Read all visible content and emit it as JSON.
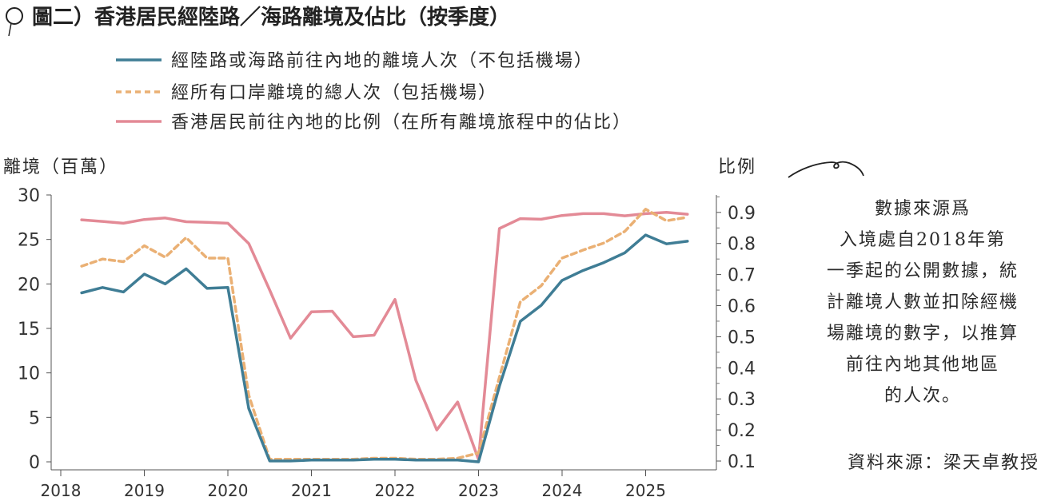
{
  "title": "圖二）香港居民經陸路／海路離境及佔比（按季度）",
  "legend": [
    {
      "label": "經陸路或海路前往內地的離境人次（不包括機場）",
      "color": "#3f7d95",
      "style": "solid"
    },
    {
      "label": "經所有口岸離境的總人次（包括機場）",
      "color": "#eab074",
      "style": "dashed"
    },
    {
      "label": "香港居民前往內地的比例（在所有離境旅程中的佔比）",
      "color": "#e38a96",
      "style": "solid"
    }
  ],
  "note_lines": [
    "數據來源爲",
    "入境處自2018年第",
    "一季起的公開數據，統",
    "計離境人數並扣除經機",
    "場離境的數字，以推算",
    "前往內地其他地區",
    "的人次。"
  ],
  "source": "資料來源：梁天卓教授",
  "chart_data": {
    "type": "line",
    "ylabel_left": "離境（百萬）",
    "ylabel_right": "比例",
    "xticks": [
      "2018",
      "2019",
      "2020",
      "2021",
      "2022",
      "2023",
      "2024",
      "2025"
    ],
    "yticks_left": [
      "0",
      "5",
      "10",
      "15",
      "20",
      "25",
      "30"
    ],
    "yticks_right": [
      "0.1",
      "0.2",
      "0.3",
      "0.4",
      "0.5",
      "0.6",
      "0.7",
      "0.8",
      "0.9"
    ],
    "ylim_left": [
      0,
      30
    ],
    "ylim_right": [
      0.1,
      0.95
    ],
    "xlim": [
      2018,
      2025.85
    ],
    "x": [
      2018.25,
      2018.5,
      2018.75,
      2019.0,
      2019.25,
      2019.5,
      2019.75,
      2020.0,
      2020.25,
      2020.5,
      2020.75,
      2021.0,
      2021.25,
      2021.5,
      2021.75,
      2022.0,
      2022.25,
      2022.5,
      2022.75,
      2023.0,
      2023.25,
      2023.5,
      2023.75,
      2024.0,
      2024.25,
      2024.5,
      2024.75,
      2025.0,
      2025.25,
      2025.5
    ],
    "series": [
      {
        "name": "經陸路或海路前往內地的離境人次（不包括機場）",
        "axis": "left",
        "values": [
          19.0,
          19.6,
          19.1,
          21.1,
          20.0,
          21.7,
          19.5,
          19.6,
          6.0,
          0.1,
          0.1,
          0.2,
          0.2,
          0.2,
          0.3,
          0.3,
          0.2,
          0.2,
          0.2,
          0.0,
          8.5,
          15.8,
          17.6,
          20.4,
          21.5,
          22.4,
          23.5,
          25.5,
          24.5,
          24.8
        ]
      },
      {
        "name": "經所有口岸離境的總人次（包括機場）",
        "axis": "left",
        "values": [
          22.0,
          22.8,
          22.5,
          24.3,
          23.0,
          25.2,
          22.9,
          22.9,
          7.5,
          0.3,
          0.3,
          0.3,
          0.3,
          0.3,
          0.4,
          0.4,
          0.3,
          0.3,
          0.4,
          1.0,
          9.5,
          18.0,
          19.8,
          22.9,
          23.8,
          24.6,
          25.9,
          28.4,
          27.1,
          27.5
        ]
      },
      {
        "name": "香港居民前往內地的比例（在所有離境旅程中的佔比）",
        "axis": "right",
        "values": [
          0.876,
          0.871,
          0.865,
          0.877,
          0.882,
          0.87,
          0.868,
          0.865,
          0.8,
          0.65,
          0.495,
          0.58,
          0.582,
          0.5,
          0.505,
          0.62,
          0.36,
          0.2,
          0.29,
          0.105,
          0.848,
          0.88,
          0.878,
          0.89,
          0.896,
          0.896,
          0.889,
          0.896,
          0.9,
          0.894
        ]
      }
    ]
  }
}
